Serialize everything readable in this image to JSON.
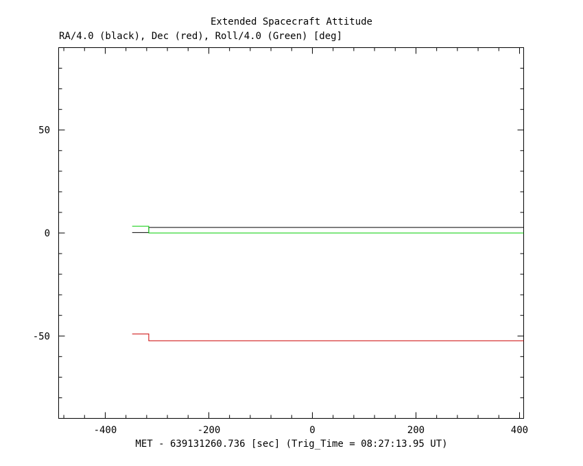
{
  "chart_data": {
    "type": "line",
    "title": "Extended Spacecraft Attitude",
    "subtitle": "RA/4.0 (black), Dec (red), Roll/4.0 (Green) [deg]",
    "xlabel": "MET - 639131260.736 [sec] (Trig_Time = 08:27:13.95 UT)",
    "ylabel": "",
    "xlim": [
      -490,
      408
    ],
    "ylim": [
      -90,
      90
    ],
    "x_ticks": [
      -400,
      -200,
      0,
      200,
      400
    ],
    "y_ticks": [
      -50,
      0,
      50
    ],
    "grid": false,
    "series": [
      {
        "color": "#000000",
        "x": [
          -348,
          -316,
          -316,
          408
        ],
        "y": [
          0.2,
          0.2,
          2.7,
          2.7
        ]
      },
      {
        "color": "#00cc00",
        "x": [
          -348,
          -316,
          -316,
          408
        ],
        "y": [
          3.3,
          3.3,
          0,
          0
        ]
      },
      {
        "color": "#cc0000",
        "x": [
          -348,
          -316,
          -316,
          408
        ],
        "y": [
          -49,
          -49,
          -52.3,
          -52.3
        ]
      }
    ]
  }
}
